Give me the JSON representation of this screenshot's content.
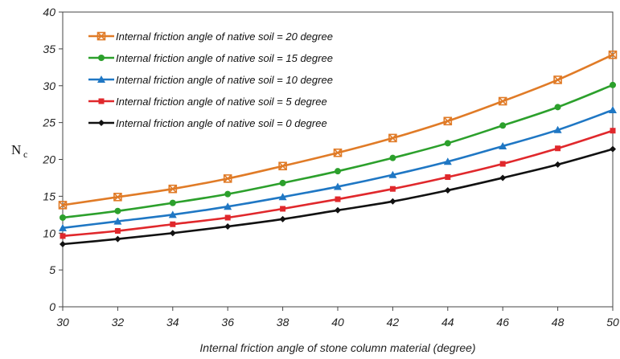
{
  "chart_data": {
    "type": "line",
    "title": "",
    "xlabel": "Internal friction angle of stone column material (degree)",
    "ylabel": "N",
    "ylabel_subscript": "c",
    "xlim": [
      30,
      50
    ],
    "ylim": [
      0,
      40
    ],
    "x_ticks": [
      30,
      32,
      34,
      36,
      38,
      40,
      42,
      44,
      46,
      48,
      50
    ],
    "y_ticks": [
      0,
      5,
      10,
      15,
      20,
      25,
      30,
      35,
      40
    ],
    "grid": false,
    "legend_position": "top-left",
    "x": [
      30,
      32,
      34,
      36,
      38,
      40,
      42,
      44,
      46,
      48,
      50
    ],
    "series": [
      {
        "name": "Internal friction angle of native soil = 20 degree",
        "color": "#e07b27",
        "marker": "x-square",
        "values": [
          13.8,
          14.9,
          16.0,
          17.4,
          19.1,
          20.9,
          22.9,
          25.2,
          27.9,
          30.8,
          34.2
        ]
      },
      {
        "name": "Internal friction angle of native soil = 15 degree",
        "color": "#2ca02c",
        "marker": "circle",
        "values": [
          12.1,
          13.0,
          14.1,
          15.3,
          16.8,
          18.4,
          20.2,
          22.2,
          24.6,
          27.1,
          30.1
        ]
      },
      {
        "name": "Internal friction angle of native soil = 10 degree",
        "color": "#1f77c4",
        "marker": "triangle",
        "values": [
          10.7,
          11.6,
          12.5,
          13.6,
          14.9,
          16.3,
          17.9,
          19.7,
          21.8,
          24.0,
          26.7
        ]
      },
      {
        "name": "Internal friction angle of native soil =  5 degree",
        "color": "#e0282c",
        "marker": "square",
        "values": [
          9.6,
          10.3,
          11.2,
          12.1,
          13.3,
          14.6,
          16.0,
          17.6,
          19.4,
          21.5,
          23.9
        ]
      },
      {
        "name": "Internal friction angle of native soil =  0 degree",
        "color": "#111111",
        "marker": "diamond",
        "values": [
          8.5,
          9.2,
          10.0,
          10.9,
          11.9,
          13.1,
          14.3,
          15.8,
          17.5,
          19.3,
          21.4
        ]
      }
    ]
  }
}
